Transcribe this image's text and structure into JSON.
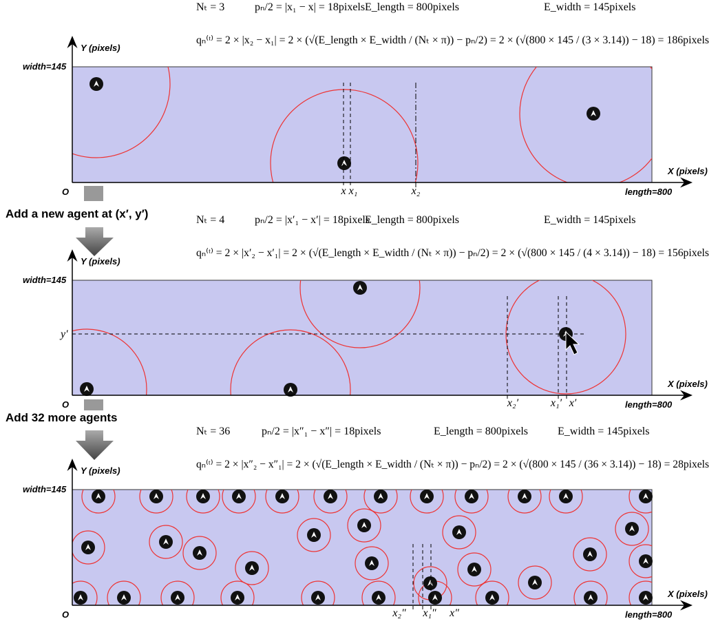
{
  "steps": [
    "Add a new agent at (x′, y′)",
    "Add 32 more agents"
  ],
  "panels": [
    {
      "formula_top": [
        "Nₜ = 3",
        "pₙ/2 = |x₁ − x| = 18pixels",
        "E_length = 800pixels",
        "E_width = 145pixels"
      ],
      "formula_bottom": "qₙ⁽ᵗ⁾ = 2 × |x₂ − x₁| = 2 × (√(E_length × E_width / (Nₜ × π)) − pₙ/2) = 2 × (√(800 × 145 / (3 × 3.14)) − 18) = 186pixels",
      "y_axis": "Y (pixels)",
      "x_axis": "X (pixels)",
      "width_label": "width=145",
      "length_label": "length=800",
      "origin": "O",
      "markers": [
        "x",
        "x₁",
        "x₂"
      ]
    },
    {
      "formula_top": [
        "Nₜ = 4",
        "pₙ/2 = |x′₁ − x′| = 18pixels",
        "E_length = 800pixels",
        "E_width = 145pixels"
      ],
      "formula_bottom": "qₙ⁽ᵗ⁾ = 2 × |x′₂ − x′₁| = 2 × (√(E_length × E_width / (Nₜ × π)) − pₙ/2) = 2 × (√(800 × 145 / (4 × 3.14)) − 18) = 156pixels",
      "y_axis": "Y (pixels)",
      "x_axis": "X (pixels)",
      "width_label": "width=145",
      "length_label": "length=800",
      "origin": "O",
      "markers": [
        "x₂′",
        "x₁′",
        "x′"
      ],
      "y_marker": "y′"
    },
    {
      "formula_top": [
        "Nₜ = 36",
        "pₙ/2 = |x″₁ − x″| = 18pixels",
        "E_length = 800pixels",
        "E_width = 145pixels"
      ],
      "formula_bottom": "qₙ⁽ᵗ⁾ = 2 × |x″₂ − x″₁| = 2 × (√(E_length × E_width / (Nₜ × π)) − pₙ/2) = 2 × (√(800 × 145 / (36 × 3.14)) − 18) = 28pixels",
      "y_axis": "Y (pixels)",
      "x_axis": "X (pixels)",
      "width_label": "width=145",
      "length_label": "length=800",
      "origin": "O",
      "markers": [
        "x₂″",
        "x₁″",
        "x″"
      ]
    }
  ]
}
